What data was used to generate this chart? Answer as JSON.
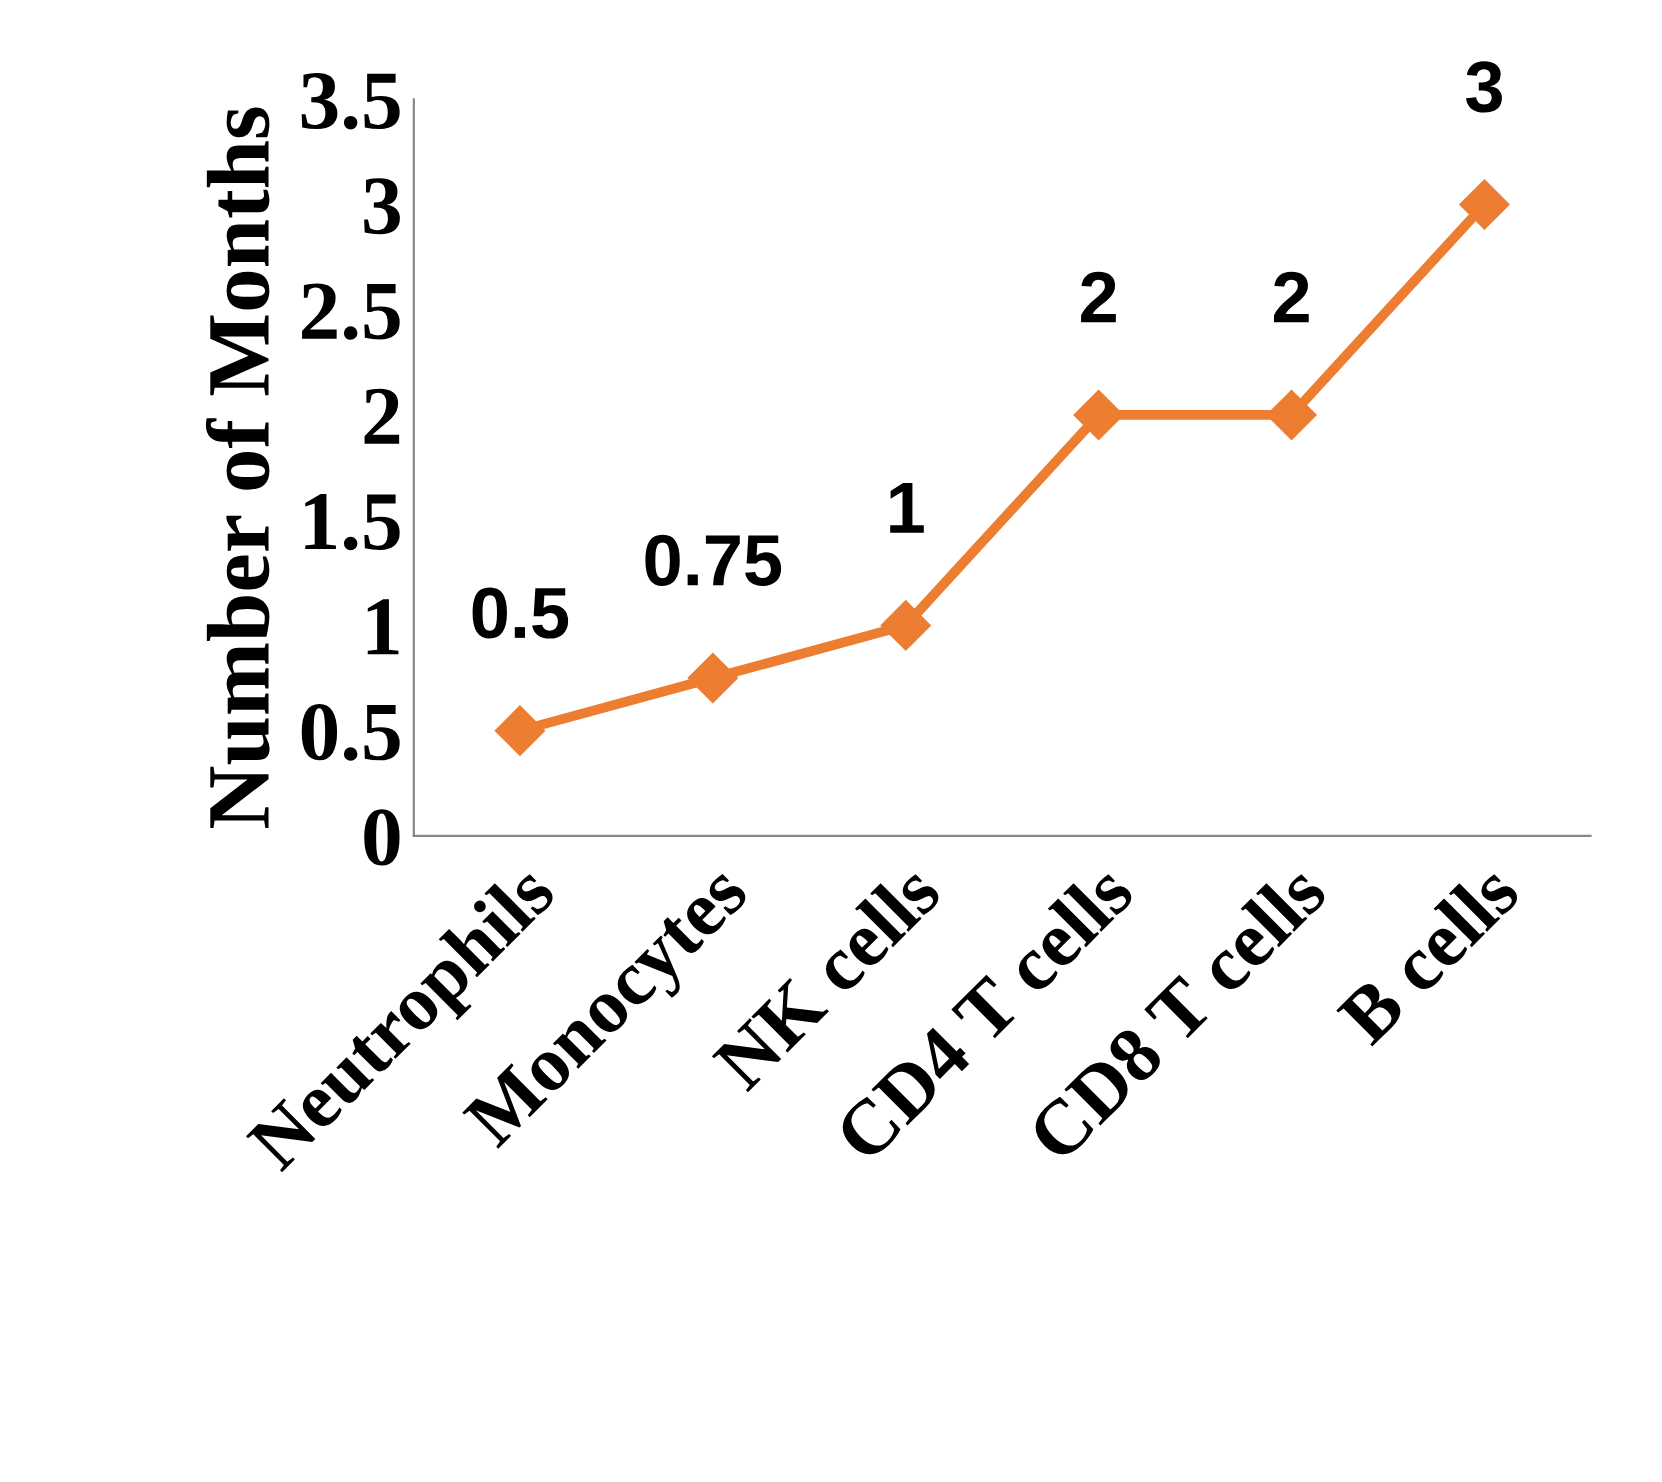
{
  "chart_data": {
    "type": "line",
    "ylabel": "Number of Months",
    "categories": [
      "Neutrophils",
      "Monocytes",
      "NK cells",
      "CD4 T cells",
      "CD8 T cells",
      "B cells"
    ],
    "series": [
      {
        "color": "#ed7d31",
        "values": [
          0.5,
          0.75,
          1,
          2,
          2,
          3
        ]
      }
    ],
    "ylim": [
      0,
      3.5
    ],
    "yticks": [
      0,
      0.5,
      1,
      1.5,
      2,
      2.5,
      3,
      3.5
    ],
    "marker": "diamond",
    "line_style": "solid",
    "data_labels": true,
    "grid": false,
    "legend": false
  }
}
